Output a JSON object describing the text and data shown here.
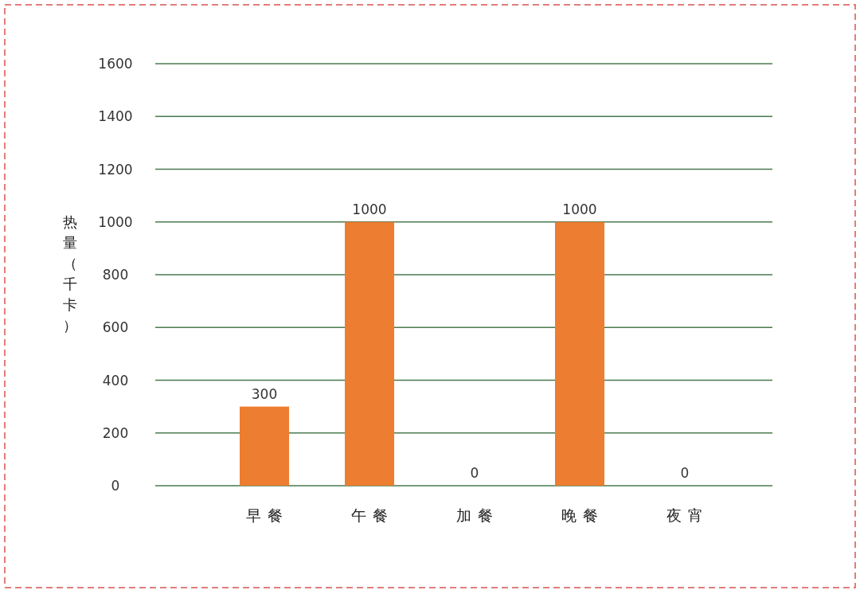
{
  "chart_data": {
    "type": "bar",
    "ylabel": "热量（千卡）",
    "categories": [
      "早餐",
      "午餐",
      "加餐",
      "晚餐",
      "夜宵"
    ],
    "values": [
      300,
      1000,
      0,
      1000,
      0
    ],
    "color": "#ed7d31",
    "ylim": [
      0,
      1600
    ],
    "yticks": [
      0,
      200,
      400,
      600,
      800,
      1000,
      1200,
      1400,
      1600
    ],
    "grid": "y",
    "data_labels": true
  }
}
